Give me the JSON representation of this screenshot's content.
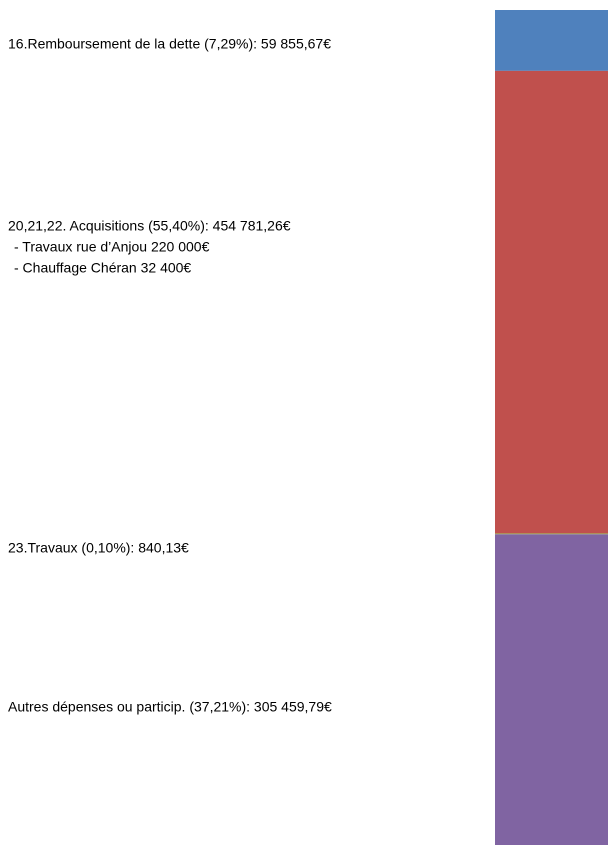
{
  "chart_data": {
    "type": "stacked_bar",
    "ylim": [
      0,
      100
    ],
    "series": [
      {
        "name": "16.Remboursement de la dette (7,29%): 59 855,67€",
        "color": "#4f81bd",
        "values": [
          7.29
        ]
      },
      {
        "name": "20,21,22. Acquisitions (55,40%): 454 781,26€",
        "color": "#c0504d",
        "values": [
          55.4
        ],
        "details": [
          "- Travaux rue d’Anjou 220 000€",
          "- Chauffage Chéran 32 400€"
        ]
      },
      {
        "name": "23.Travaux (0,10%): 840,13€",
        "color": "#9bbb59",
        "values": [
          0.1
        ]
      },
      {
        "name": "Autres dépenses ou particip. (37,21%): 305 459,79€",
        "color": "#8064a2",
        "values": [
          37.21
        ]
      }
    ]
  }
}
